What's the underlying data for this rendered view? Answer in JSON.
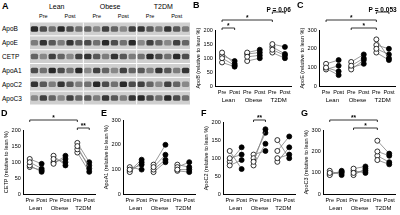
{
  "blot": {
    "panel": "A",
    "groups": [
      "Lean",
      "Obese",
      "T2DM"
    ],
    "lanes": [
      "Pre",
      "Post"
    ],
    "rows": [
      "ApoB",
      "ApoE",
      "CETP",
      "ApoA1",
      "ApoC2",
      "ApoC3"
    ]
  },
  "chart_data": [
    {
      "panel": "B",
      "type": "line",
      "y_label": "ApoB (relative to lean %)",
      "categories": [
        "Pre",
        "Post",
        "Pre",
        "Post",
        "Pre",
        "Post"
      ],
      "groups": [
        {
          "name": "Lean",
          "pre": [
            100,
            120,
            110,
            85
          ],
          "post": [
            75,
            80,
            90,
            70
          ]
        },
        {
          "name": "Obese",
          "pre": [
            105,
            90,
            120,
            115
          ],
          "post": [
            110,
            100,
            130,
            120
          ]
        },
        {
          "name": "T2DM",
          "pre": [
            130,
            150,
            140,
            120
          ],
          "post": [
            110,
            140,
            115,
            100
          ]
        }
      ],
      "annotations": [
        {
          "text": "*",
          "from": 0,
          "to": 1
        },
        {
          "text": "*",
          "from": 0,
          "to": 4
        },
        {
          "text": "P = 0.06",
          "from": 4,
          "to": 5
        }
      ],
      "ylim": [
        0,
        200
      ],
      "yticks": [
        0,
        50,
        100,
        150,
        200
      ],
      "grid": false,
      "color": "#808080",
      "colors": [
        "#ffffff",
        "#000000",
        "#ffffff",
        "#000000",
        "#ffffff",
        "#000000"
      ],
      "marker": "circle",
      "line_style": "solid"
    },
    {
      "panel": "C",
      "type": "line",
      "y_label": "ApoE (relative to lean %)",
      "categories": [
        "Pre",
        "Post",
        "Pre",
        "Post",
        "Pre",
        "Post"
      ],
      "groups": [
        {
          "name": "Lean",
          "pre": [
            100,
            120,
            90,
            95
          ],
          "post": [
            80,
            140,
            110,
            60
          ]
        },
        {
          "name": "Obese",
          "pre": [
            110,
            130,
            90,
            100
          ],
          "post": [
            150,
            170,
            140,
            120
          ]
        },
        {
          "name": "T2DM",
          "pre": [
            250,
            200,
            180,
            220
          ],
          "post": [
            150,
            170,
            140,
            200
          ]
        }
      ],
      "annotations": [
        {
          "text": "*",
          "from": 2,
          "to": 4
        },
        {
          "text": "*",
          "from": 0,
          "to": 4
        },
        {
          "text": "P = 0.053",
          "from": 4,
          "to": 5
        }
      ],
      "ylim": [
        0,
        300
      ],
      "yticks": [
        0,
        100,
        200,
        300
      ],
      "grid": false,
      "color": "#808080",
      "colors": [
        "#ffffff",
        "#000000",
        "#ffffff",
        "#000000",
        "#ffffff",
        "#000000"
      ],
      "marker": "circle",
      "line_style": "solid"
    },
    {
      "panel": "D",
      "type": "line",
      "y_label": "CETP (relative to lean %)",
      "categories": [
        "Pre",
        "Post",
        "Pre",
        "Post",
        "Pre",
        "Post"
      ],
      "groups": [
        {
          "name": "Lean",
          "pre": [
            100,
            90,
            110,
            85
          ],
          "post": [
            80,
            70,
            95,
            75
          ]
        },
        {
          "name": "Obese",
          "pre": [
            110,
            95,
            120,
            100
          ],
          "post": [
            100,
            120,
            90,
            110
          ]
        },
        {
          "name": "T2DM",
          "pre": [
            150,
            140,
            160,
            130
          ],
          "post": [
            80,
            90,
            100,
            70
          ]
        }
      ],
      "annotations": [
        {
          "text": "**",
          "from": 4,
          "to": 5
        },
        {
          "text": "*",
          "from": 0,
          "to": 4
        }
      ],
      "ylim": [
        0,
        200
      ],
      "yticks": [
        0,
        50,
        100,
        150,
        200
      ],
      "grid": false,
      "color": "#808080",
      "colors": [
        "#ffffff",
        "#000000",
        "#ffffff",
        "#000000",
        "#ffffff",
        "#000000"
      ],
      "marker": "circle",
      "line_style": "solid"
    },
    {
      "panel": "E",
      "type": "line",
      "y_label": "ApoA1 (relative to lean %)",
      "categories": [
        "Pre",
        "Post",
        "Pre",
        "Post",
        "Pre",
        "Post"
      ],
      "groups": [
        {
          "name": "Lean",
          "pre": [
            100,
            110,
            90,
            95
          ],
          "post": [
            120,
            100,
            130,
            140
          ]
        },
        {
          "name": "Obese",
          "pre": [
            110,
            120,
            100,
            90
          ],
          "post": [
            160,
            200,
            140,
            130
          ]
        },
        {
          "name": "T2DM",
          "pre": [
            100,
            110,
            95,
            120
          ],
          "post": [
            100,
            130,
            90,
            110
          ]
        }
      ],
      "annotations": [],
      "ylim": [
        0,
        300
      ],
      "yticks": [
        0,
        100,
        200,
        300
      ],
      "grid": false,
      "color": "#808080",
      "colors": [
        "#ffffff",
        "#000000",
        "#ffffff",
        "#000000",
        "#ffffff",
        "#000000"
      ],
      "marker": "circle",
      "line_style": "solid"
    },
    {
      "panel": "F",
      "type": "line",
      "y_label": "ApoC2 (relative to lean %)",
      "categories": [
        "Pre",
        "Post",
        "Pre",
        "Post",
        "Pre",
        "Post"
      ],
      "groups": [
        {
          "name": "Lean",
          "pre": [
            100,
            80,
            120,
            90
          ],
          "post": [
            110,
            95,
            70,
            130
          ]
        },
        {
          "name": "Obese",
          "pre": [
            90,
            100,
            80,
            110
          ],
          "post": [
            180,
            170,
            140,
            120
          ]
        },
        {
          "name": "T2DM",
          "pre": [
            100,
            150,
            120,
            90
          ],
          "post": [
            110,
            100,
            160,
            130
          ]
        }
      ],
      "annotations": [
        {
          "text": "**",
          "from": 2,
          "to": 3
        }
      ],
      "ylim": [
        0,
        200
      ],
      "yticks": [
        0,
        50,
        100,
        150,
        200
      ],
      "grid": false,
      "color": "#808080",
      "colors": [
        "#ffffff",
        "#000000",
        "#ffffff",
        "#000000",
        "#ffffff",
        "#000000"
      ],
      "marker": "circle",
      "line_style": "solid"
    },
    {
      "panel": "G",
      "type": "line",
      "y_label": "ApoC3 (relative to lean %)",
      "categories": [
        "Pre",
        "Post",
        "Pre",
        "Post",
        "Pre",
        "Post"
      ],
      "groups": [
        {
          "name": "Lean",
          "pre": [
            100,
            90,
            110,
            95
          ],
          "post": [
            100,
            110,
            90,
            105
          ]
        },
        {
          "name": "Obese",
          "pre": [
            100,
            120,
            110,
            90
          ],
          "post": [
            110,
            130,
            100,
            120
          ]
        },
        {
          "name": "T2DM",
          "pre": [
            200,
            250,
            160,
            180
          ],
          "post": [
            180,
            190,
            140,
            150
          ]
        }
      ],
      "annotations": [
        {
          "text": "*",
          "from": 2,
          "to": 4
        },
        {
          "text": "**",
          "from": 0,
          "to": 4
        }
      ],
      "ylim": [
        0,
        300
      ],
      "yticks": [
        0,
        100,
        200,
        300
      ],
      "grid": false,
      "color": "#808080",
      "colors": [
        "#ffffff",
        "#000000",
        "#ffffff",
        "#000000",
        "#ffffff",
        "#000000"
      ],
      "marker": "circle",
      "line_style": "solid"
    }
  ]
}
